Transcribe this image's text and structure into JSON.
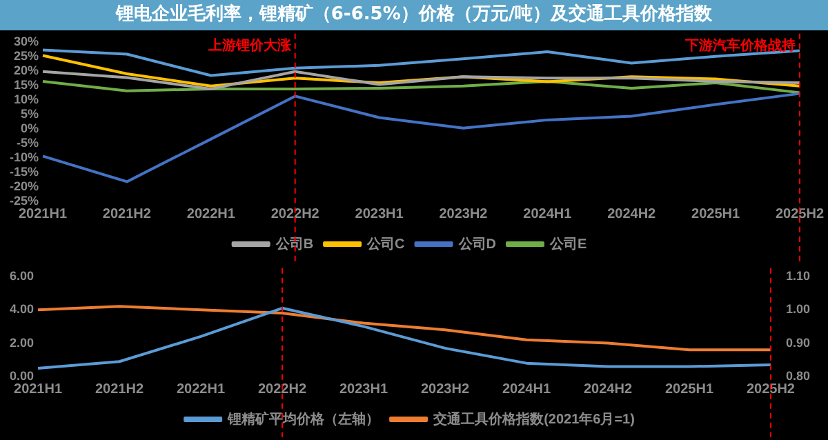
{
  "chart_data": [
    {
      "type": "line",
      "title": "锂电企业毛利率，锂精矿（6-6.5%）价格（万元/吨）及交通工具价格指数",
      "categories": [
        "2021H1",
        "2021H2",
        "2022H1",
        "2022H2",
        "2023H1",
        "2023H2",
        "2024H1",
        "2024H2",
        "2025H1",
        "2025H2"
      ],
      "series": [
        {
          "color": "#5b9bd5",
          "values": [
            27.2,
            25.8,
            18.4,
            21,
            21.9,
            24.2,
            26.6,
            22.7,
            25,
            27
          ]
        },
        {
          "name": "公司B",
          "color": "#a5a5a5",
          "values": [
            19.8,
            17.7,
            13.8,
            19.8,
            15.3,
            18,
            17.5,
            17.5,
            16.4,
            15.9
          ]
        },
        {
          "name": "公司C",
          "color": "#ffc000",
          "values": [
            25.3,
            19,
            14.8,
            17.5,
            15.9,
            18,
            16.3,
            18,
            17.2,
            14.8
          ]
        },
        {
          "name": "公司D",
          "color": "#4472c4",
          "values": [
            -9.4,
            -18.2,
            -3.5,
            11.3,
            3.9,
            0.3,
            3.1,
            4.4,
            8.4,
            12.2
          ]
        },
        {
          "name": "公司E",
          "color": "#70ad47",
          "values": [
            16.4,
            13.1,
            13.8,
            13.8,
            14,
            14.8,
            16.4,
            14,
            15.9,
            12.5
          ]
        }
      ],
      "ylim": [
        -25,
        30
      ],
      "yticks": [
        {
          "value": -25,
          "label": "-25%"
        },
        {
          "value": -20,
          "label": "-20%"
        },
        {
          "value": -15,
          "label": "-15%"
        },
        {
          "value": -10,
          "label": "-10%"
        },
        {
          "value": -5,
          "label": "-5%"
        },
        {
          "value": 0,
          "label": "0%"
        },
        {
          "value": 5,
          "label": "5%"
        },
        {
          "value": 10,
          "label": "10%"
        },
        {
          "value": 15,
          "label": "15%"
        },
        {
          "value": 20,
          "label": "20%"
        },
        {
          "value": 25,
          "label": "25%"
        },
        {
          "value": 30,
          "label": "30%"
        }
      ],
      "ref_lines": [
        {
          "axis": "x",
          "value": "2022H2",
          "label": "上游锂价大涨",
          "color": "#ff0000",
          "line_style": "dashed"
        },
        {
          "axis": "x",
          "value": "2025H2",
          "label": "下游汽车价格战持",
          "color": "#ff0000",
          "line_style": "dashed"
        }
      ],
      "legend": "bottom",
      "marker": "none"
    },
    {
      "type": "line",
      "categories": [
        "2021H1",
        "2021H2",
        "2022H1",
        "2022H2",
        "2023H1",
        "2023H2",
        "2024H1",
        "2024H2",
        "2025H1",
        "2025H2"
      ],
      "series": [
        {
          "name": "锂精矿平均价格（左轴）",
          "color": "#5b9bd5",
          "values": [
            0.5,
            0.9,
            2.4,
            4.1,
            3,
            1.7,
            0.8,
            0.6,
            0.6,
            0.7
          ]
        },
        {
          "name": "交通工具价格指数(2021年6月=1)",
          "color": "#ed7d31",
          "axis": "y2",
          "values": [
            1.0,
            1.01,
            1.0,
            0.99,
            0.96,
            0.94,
            0.91,
            0.9,
            0.88,
            0.88
          ]
        }
      ],
      "ylim": [
        0,
        6
      ],
      "yticks": [
        {
          "value": 0,
          "label": "0.00"
        },
        {
          "value": 2,
          "label": "2.00"
        },
        {
          "value": 4,
          "label": "4.00"
        },
        {
          "value": 6,
          "label": "6.00"
        }
      ],
      "y2lim": [
        0.8,
        1.1
      ],
      "y2ticks": [
        {
          "value": 0.8,
          "label": "0.80"
        },
        {
          "value": 0.9,
          "label": "0.90"
        },
        {
          "value": 1.0,
          "label": "1.00"
        },
        {
          "value": 1.1,
          "label": "1.10"
        }
      ],
      "ref_lines": [
        {
          "axis": "x",
          "value": "2022H2",
          "color": "#ff0000",
          "line_style": "dashed"
        },
        {
          "axis": "x",
          "value": "2025H2",
          "color": "#ff0000",
          "line_style": "dashed"
        }
      ],
      "legend": "bottom",
      "marker": "none"
    }
  ]
}
